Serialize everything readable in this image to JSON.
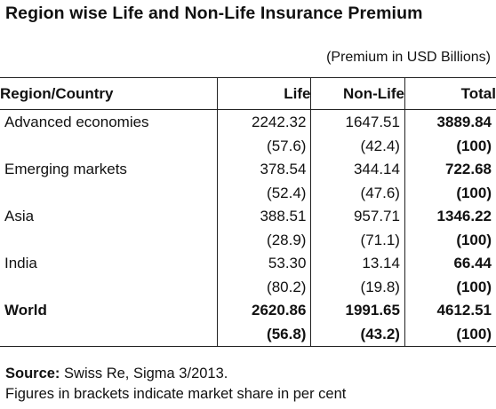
{
  "title": "Region wise Life and Non-Life Insurance Premium",
  "unit_note": "(Premium in USD Billions)",
  "headers": {
    "region": "Region/Country",
    "life": "Life",
    "nonlife": "Non-Life",
    "total": "Total"
  },
  "rows": [
    {
      "name": "Advanced economies",
      "life": "2242.32",
      "life_share": "(57.6)",
      "nonlife": "1647.51",
      "nonlife_share": "(42.4)",
      "total": "3889.84",
      "total_share": "(100)"
    },
    {
      "name": "Emerging markets",
      "life": "378.54",
      "life_share": "(52.4)",
      "nonlife": "344.14",
      "nonlife_share": "(47.6)",
      "total": "722.68",
      "total_share": "(100)"
    },
    {
      "name": "Asia",
      "life": "388.51",
      "life_share": "(28.9)",
      "nonlife": "957.71",
      "nonlife_share": "(71.1)",
      "total": "1346.22",
      "total_share": "(100)"
    },
    {
      "name": "India",
      "life": "53.30",
      "life_share": "(80.2)",
      "nonlife": "13.14",
      "nonlife_share": "(19.8)",
      "total": "66.44",
      "total_share": "(100)"
    },
    {
      "name": "World",
      "life": "2620.86",
      "life_share": "(56.8)",
      "nonlife": "1991.65",
      "nonlife_share": "(43.2)",
      "total": "4612.51",
      "total_share": "(100)"
    }
  ],
  "footer": {
    "source_label": "Source:",
    "source_text": " Swiss Re, Sigma 3/2013.",
    "note": "Figures in brackets indicate market share in per cent"
  }
}
